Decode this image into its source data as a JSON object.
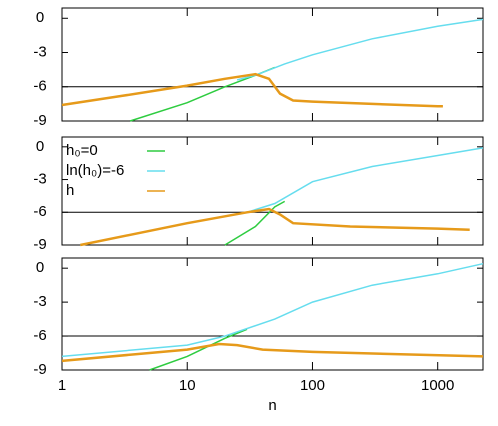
{
  "chart_data": [
    {
      "type": "line",
      "xscale": "log",
      "xlim": [
        1,
        2300
      ],
      "xticks": [
        1,
        10,
        100,
        1000
      ],
      "ylim": [
        -9,
        0.9
      ],
      "yticks": [
        0,
        -3,
        -6,
        -9
      ],
      "reference_line": -6,
      "series": [
        {
          "name": "h₀=0",
          "color": "#2ecc40",
          "x": [
            3.5,
            10,
            20,
            35,
            50
          ],
          "values": [
            -9,
            -7.4,
            -6.0,
            -5.0,
            -4.3
          ]
        },
        {
          "name": "ln(h₀)=-6",
          "color": "#66ddee",
          "x": [
            25,
            35,
            60,
            100,
            300,
            1000,
            2300
          ],
          "values": [
            -5.4,
            -5.0,
            -4.0,
            -3.2,
            -1.8,
            -0.7,
            -0.1
          ]
        },
        {
          "name": "h",
          "color": "#e69a1a",
          "x": [
            1,
            3,
            10,
            20,
            35,
            45,
            55,
            70,
            100,
            300,
            1000,
            1100
          ],
          "values": [
            -7.6,
            -6.8,
            -5.9,
            -5.3,
            -4.9,
            -5.3,
            -6.6,
            -7.2,
            -7.3,
            -7.5,
            -7.7,
            -7.7
          ]
        }
      ]
    },
    {
      "type": "line",
      "xscale": "log",
      "xlim": [
        1,
        2300
      ],
      "xticks": [
        1,
        10,
        100,
        1000
      ],
      "ylim": [
        -9,
        0.9
      ],
      "yticks": [
        0,
        -3,
        -6,
        -9
      ],
      "reference_line": -6,
      "legend": "upper left",
      "series": [
        {
          "name": "h₀=0",
          "color": "#2ecc40",
          "x": [
            20,
            35,
            50,
            60
          ],
          "values": [
            -9,
            -7.3,
            -5.5,
            -5.0
          ]
        },
        {
          "name": "ln(h₀)=-6",
          "color": "#66ddee",
          "x": [
            1.4,
            10,
            30,
            50,
            100,
            300,
            1000,
            2300
          ],
          "values": [
            -9,
            -7.0,
            -6.0,
            -5.2,
            -3.2,
            -1.8,
            -0.8,
            -0.1
          ]
        },
        {
          "name": "h",
          "color": "#e69a1a",
          "x": [
            1.4,
            10,
            30,
            45,
            55,
            70,
            200,
            1000,
            1800
          ],
          "values": [
            -9,
            -7.0,
            -6.0,
            -5.7,
            -6.2,
            -7.0,
            -7.3,
            -7.5,
            -7.6
          ]
        }
      ]
    },
    {
      "type": "line",
      "xscale": "log",
      "xlim": [
        1,
        2300
      ],
      "xticks": [
        1,
        10,
        100,
        1000
      ],
      "ylim": [
        -9,
        0.9
      ],
      "yticks": [
        0,
        -3,
        -6,
        -9
      ],
      "reference_line": -6,
      "xlabel": "n",
      "series": [
        {
          "name": "h₀=0",
          "color": "#2ecc40",
          "x": [
            5,
            10,
            20,
            30
          ],
          "values": [
            -9,
            -7.8,
            -6.2,
            -5.4
          ]
        },
        {
          "name": "ln(h₀)=-6",
          "color": "#66ddee",
          "x": [
            1,
            10,
            20,
            50,
            100,
            300,
            1000,
            2300
          ],
          "values": [
            -7.8,
            -6.8,
            -6.0,
            -4.5,
            -3.0,
            -1.5,
            -0.5,
            0.4
          ]
        },
        {
          "name": "h",
          "color": "#e69a1a",
          "x": [
            1,
            5,
            10,
            18,
            25,
            40,
            100,
            2300
          ],
          "values": [
            -8.2,
            -7.5,
            -7.2,
            -6.7,
            -6.8,
            -7.2,
            -7.4,
            -7.8
          ]
        }
      ]
    }
  ]
}
